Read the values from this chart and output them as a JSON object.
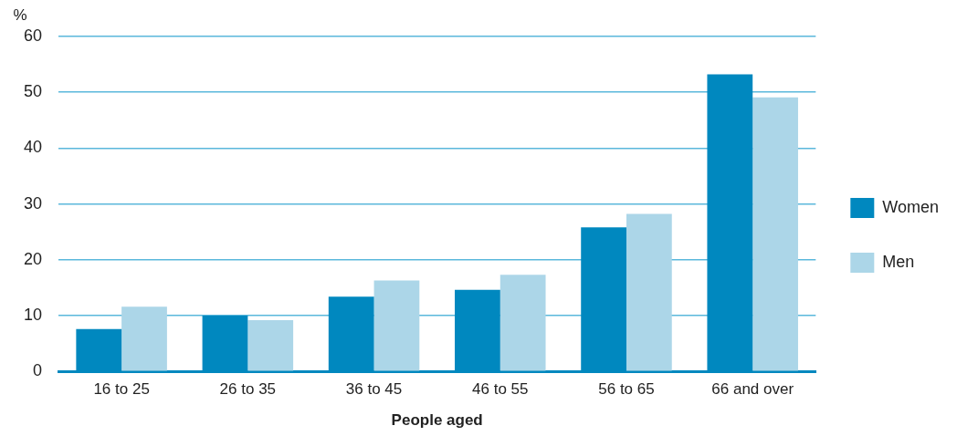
{
  "chart_data": {
    "type": "bar",
    "xlabel": "People aged",
    "ylabel": "%",
    "categories": [
      "16 to 25",
      "26 to 35",
      "36 to 45",
      "46 to 55",
      "56 to 65",
      "66 and over"
    ],
    "series": [
      {
        "name": "Women",
        "color": "#0088bf",
        "values": [
          7.6,
          10,
          13.4,
          14.6,
          25.8,
          53.2
        ]
      },
      {
        "name": "Men",
        "color": "#acd6e8",
        "values": [
          11.6,
          9.2,
          16.3,
          17.3,
          28.2,
          49.1
        ]
      }
    ],
    "ylim": [
      0,
      60
    ],
    "yticks": [
      0,
      10,
      20,
      30,
      40,
      50,
      60
    ],
    "grid": "y",
    "legend": "right"
  }
}
